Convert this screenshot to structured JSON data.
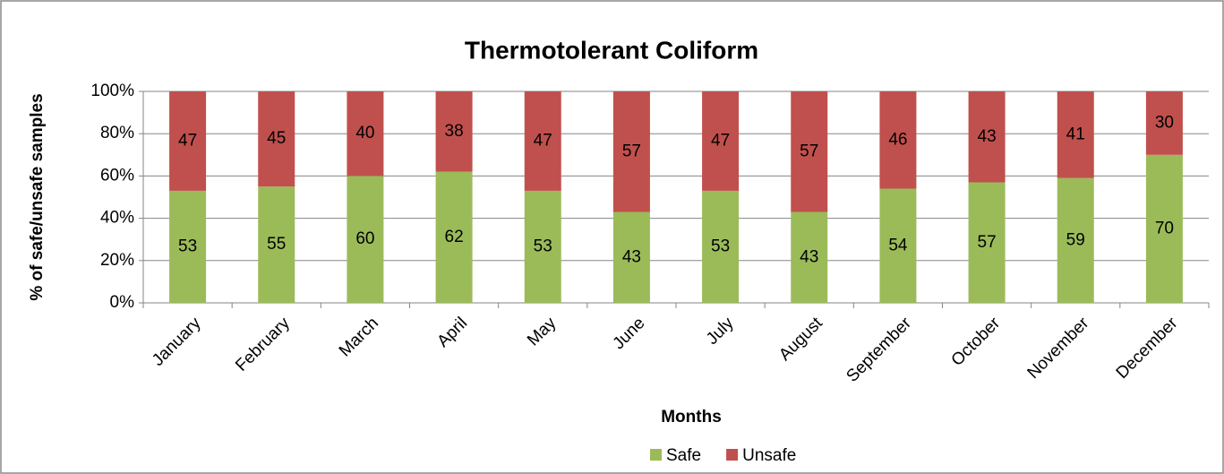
{
  "chart_data": {
    "type": "stacked_bar",
    "title": "Thermotolerant Coliform",
    "xlabel": "Months",
    "ylabel": "% of safe/unsafe samples",
    "categories": [
      "January",
      "February",
      "March",
      "April",
      "May",
      "June",
      "July",
      "August",
      "September",
      "October",
      "November",
      "December"
    ],
    "series": [
      {
        "name": "Safe",
        "color": "#9bbb59",
        "values": [
          53,
          55,
          60,
          62,
          53,
          43,
          53,
          43,
          54,
          57,
          59,
          70
        ]
      },
      {
        "name": "Unsafe",
        "color": "#c0504d",
        "values": [
          47,
          45,
          40,
          38,
          47,
          57,
          47,
          57,
          46,
          43,
          41,
          30
        ]
      }
    ],
    "ylim": [
      0,
      100
    ],
    "yticks": [
      {
        "value": 0,
        "label": "0%"
      },
      {
        "value": 20,
        "label": "20%"
      },
      {
        "value": 40,
        "label": "40%"
      },
      {
        "value": 60,
        "label": "60%"
      },
      {
        "value": 80,
        "label": "80%"
      },
      {
        "value": 100,
        "label": "100%"
      }
    ],
    "grid": true,
    "legend": "bottom"
  }
}
